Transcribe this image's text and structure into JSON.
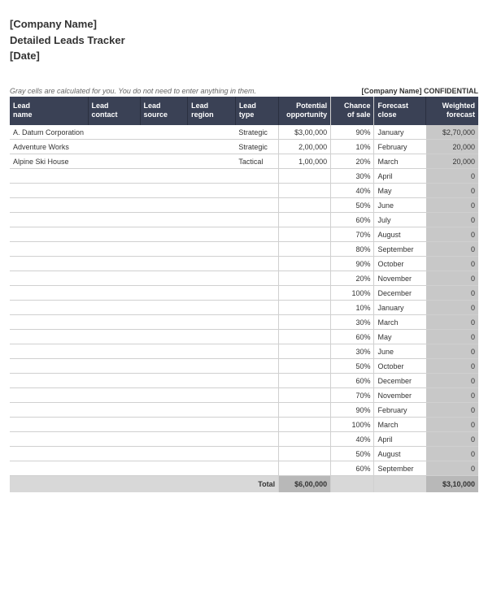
{
  "header": {
    "company": "[Company Name]",
    "title": "Detailed Leads Tracker",
    "date": "[Date]"
  },
  "note": "Gray cells are calculated for you. You do not need to enter anything in them.",
  "confidential": {
    "company": "[Company Name]",
    "label": "CONFIDENTIAL"
  },
  "columns": [
    {
      "l1": "Lead",
      "l2": "name"
    },
    {
      "l1": "Lead",
      "l2": "contact"
    },
    {
      "l1": "Lead",
      "l2": "source"
    },
    {
      "l1": "Lead",
      "l2": "region"
    },
    {
      "l1": "Lead",
      "l2": "type"
    },
    {
      "l1": "Potential",
      "l2": "opportunity"
    },
    {
      "l1": "Chance",
      "l2": "of sale"
    },
    {
      "l1": "Forecast",
      "l2": "close"
    },
    {
      "l1": "Weighted",
      "l2": "forecast"
    }
  ],
  "rows": [
    {
      "name": "A. Datum Corporation",
      "contact": "",
      "source": "",
      "region": "",
      "type": "Strategic",
      "opp": "$3,00,000",
      "chance": "90%",
      "close": "January",
      "fore": "$2,70,000"
    },
    {
      "name": "Adventure Works",
      "contact": "",
      "source": "",
      "region": "",
      "type": "Strategic",
      "opp": "2,00,000",
      "chance": "10%",
      "close": "February",
      "fore": "20,000"
    },
    {
      "name": "Alpine Ski House",
      "contact": "",
      "source": "",
      "region": "",
      "type": "Tactical",
      "opp": "1,00,000",
      "chance": "20%",
      "close": "March",
      "fore": "20,000"
    },
    {
      "name": "",
      "contact": "",
      "source": "",
      "region": "",
      "type": "",
      "opp": "",
      "chance": "30%",
      "close": "April",
      "fore": "0"
    },
    {
      "name": "",
      "contact": "",
      "source": "",
      "region": "",
      "type": "",
      "opp": "",
      "chance": "40%",
      "close": "May",
      "fore": "0"
    },
    {
      "name": "",
      "contact": "",
      "source": "",
      "region": "",
      "type": "",
      "opp": "",
      "chance": "50%",
      "close": "June",
      "fore": "0"
    },
    {
      "name": "",
      "contact": "",
      "source": "",
      "region": "",
      "type": "",
      "opp": "",
      "chance": "60%",
      "close": "July",
      "fore": "0"
    },
    {
      "name": "",
      "contact": "",
      "source": "",
      "region": "",
      "type": "",
      "opp": "",
      "chance": "70%",
      "close": "August",
      "fore": "0"
    },
    {
      "name": "",
      "contact": "",
      "source": "",
      "region": "",
      "type": "",
      "opp": "",
      "chance": "80%",
      "close": "September",
      "fore": "0"
    },
    {
      "name": "",
      "contact": "",
      "source": "",
      "region": "",
      "type": "",
      "opp": "",
      "chance": "90%",
      "close": "October",
      "fore": "0"
    },
    {
      "name": "",
      "contact": "",
      "source": "",
      "region": "",
      "type": "",
      "opp": "",
      "chance": "20%",
      "close": "November",
      "fore": "0"
    },
    {
      "name": "",
      "contact": "",
      "source": "",
      "region": "",
      "type": "",
      "opp": "",
      "chance": "100%",
      "close": "December",
      "fore": "0"
    },
    {
      "name": "",
      "contact": "",
      "source": "",
      "region": "",
      "type": "",
      "opp": "",
      "chance": "10%",
      "close": "January",
      "fore": "0"
    },
    {
      "name": "",
      "contact": "",
      "source": "",
      "region": "",
      "type": "",
      "opp": "",
      "chance": "30%",
      "close": "March",
      "fore": "0"
    },
    {
      "name": "",
      "contact": "",
      "source": "",
      "region": "",
      "type": "",
      "opp": "",
      "chance": "60%",
      "close": "May",
      "fore": "0"
    },
    {
      "name": "",
      "contact": "",
      "source": "",
      "region": "",
      "type": "",
      "opp": "",
      "chance": "30%",
      "close": "June",
      "fore": "0"
    },
    {
      "name": "",
      "contact": "",
      "source": "",
      "region": "",
      "type": "",
      "opp": "",
      "chance": "50%",
      "close": "October",
      "fore": "0"
    },
    {
      "name": "",
      "contact": "",
      "source": "",
      "region": "",
      "type": "",
      "opp": "",
      "chance": "60%",
      "close": "December",
      "fore": "0"
    },
    {
      "name": "",
      "contact": "",
      "source": "",
      "region": "",
      "type": "",
      "opp": "",
      "chance": "70%",
      "close": "November",
      "fore": "0"
    },
    {
      "name": "",
      "contact": "",
      "source": "",
      "region": "",
      "type": "",
      "opp": "",
      "chance": "90%",
      "close": "February",
      "fore": "0"
    },
    {
      "name": "",
      "contact": "",
      "source": "",
      "region": "",
      "type": "",
      "opp": "",
      "chance": "100%",
      "close": "March",
      "fore": "0"
    },
    {
      "name": "",
      "contact": "",
      "source": "",
      "region": "",
      "type": "",
      "opp": "",
      "chance": "40%",
      "close": "April",
      "fore": "0"
    },
    {
      "name": "",
      "contact": "",
      "source": "",
      "region": "",
      "type": "",
      "opp": "",
      "chance": "50%",
      "close": "August",
      "fore": "0"
    },
    {
      "name": "",
      "contact": "",
      "source": "",
      "region": "",
      "type": "",
      "opp": "",
      "chance": "60%",
      "close": "September",
      "fore": "0"
    }
  ],
  "totals": {
    "label": "Total",
    "opp": "$6,00,000",
    "fore": "$3,10,000"
  },
  "colors": {
    "header_bg": "#3a4155",
    "header_text": "#ffffff",
    "calc_bg": "#c8c8c8",
    "border": "#d0d0d0",
    "footer_bg": "#d8d8d8"
  }
}
